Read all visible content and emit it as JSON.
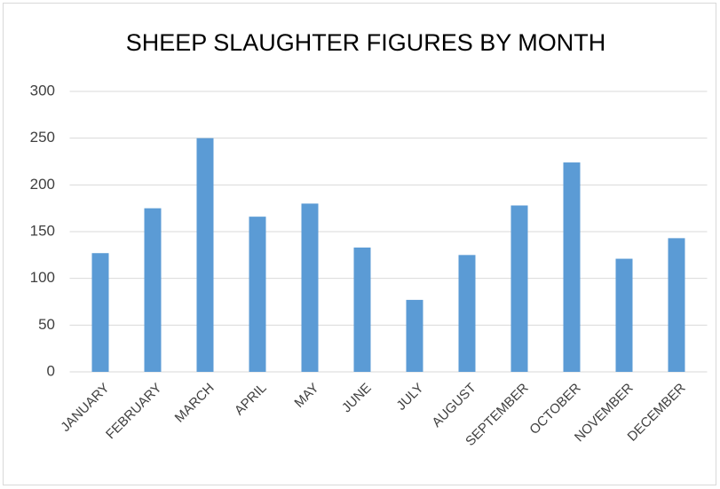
{
  "chart_data": {
    "type": "bar",
    "title": "SHEEP SLAUGHTER FIGURES BY MONTH",
    "categories": [
      "JANUARY",
      "FEBRUARY",
      "MARCH",
      "APRIL",
      "MAY",
      "JUNE",
      "JULY",
      "AUGUST",
      "SEPTEMBER",
      "OCTOBER",
      "NOVEMBER",
      "DECEMBER"
    ],
    "values": [
      127,
      175,
      250,
      166,
      180,
      133,
      77,
      125,
      178,
      224,
      121,
      143
    ],
    "color": "#5b9bd5",
    "ylim": [
      0,
      300
    ],
    "yticks": [
      0,
      50,
      100,
      150,
      200,
      250,
      300
    ],
    "grid": true
  }
}
